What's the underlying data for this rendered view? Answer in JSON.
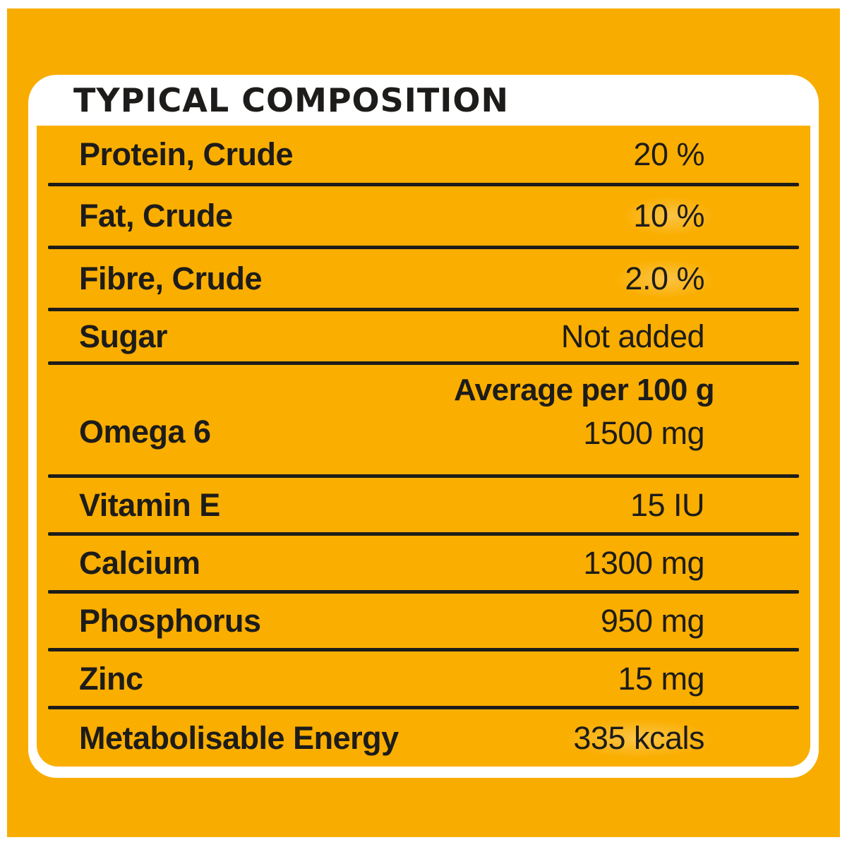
{
  "panel": {
    "title": "TYPICAL COMPOSITION"
  },
  "composition": {
    "rows": [
      {
        "label": "Protein, Crude",
        "value": "20 %"
      },
      {
        "label": "Fat, Crude",
        "value": "10 %"
      },
      {
        "label": "Fibre, Crude",
        "value": "2.0 %"
      },
      {
        "label": "Sugar",
        "value": "Not added"
      }
    ],
    "average_header": "Average per 100 g",
    "nutrient_rows": [
      {
        "label": "Omega 6",
        "value": "1500 mg"
      },
      {
        "label": "Vitamin E",
        "value": "15 IU"
      },
      {
        "label": "Calcium",
        "value": "1300 mg"
      },
      {
        "label": "Phosphorus",
        "value": "950 mg"
      },
      {
        "label": "Zinc",
        "value": "15 mg"
      },
      {
        "label": "Metabolisable Energy",
        "value": "335 kcals"
      }
    ]
  },
  "colors": {
    "background_yellow": "#F8AC00",
    "table_yellow": "#FAAE00",
    "panel_white": "#FFFFFF",
    "text_black": "#1D1C1A"
  }
}
